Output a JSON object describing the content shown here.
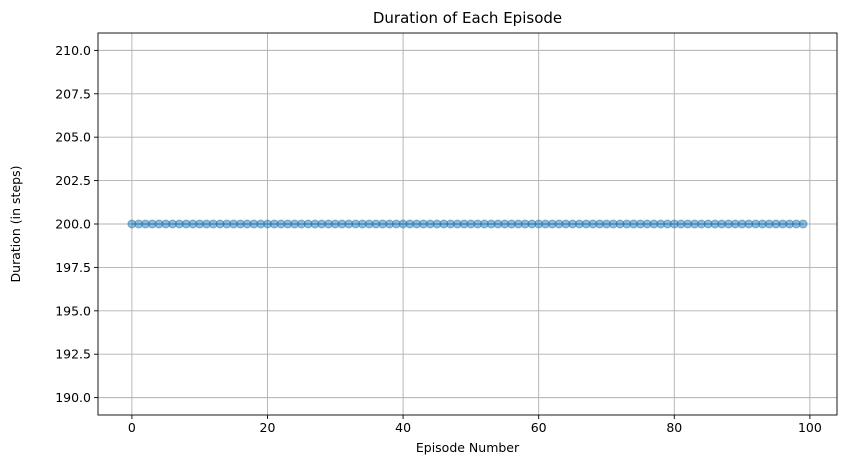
{
  "chart_data": {
    "type": "scatter",
    "title": "Duration of Each Episode",
    "xlabel": "Episode Number",
    "ylabel": "Duration (in steps)",
    "xlim": [
      -5,
      104
    ],
    "ylim": [
      189,
      211
    ],
    "xticks": [
      0,
      20,
      40,
      60,
      80,
      100
    ],
    "yticks": [
      190.0,
      192.5,
      195.0,
      197.5,
      200.0,
      202.5,
      205.0,
      207.5,
      210.0
    ],
    "xtick_labels": [
      "0",
      "20",
      "40",
      "60",
      "80",
      "100"
    ],
    "ytick_labels": [
      "190.0",
      "192.5",
      "195.0",
      "197.5",
      "200.0",
      "202.5",
      "205.0",
      "207.5",
      "210.0"
    ],
    "grid": true,
    "line_connected": true,
    "series": [
      {
        "color": "#1f77b4",
        "marker": "circle",
        "alpha": 0.5,
        "x_start": 0,
        "x_end": 99,
        "x_step": 1,
        "y_constant": 200
      }
    ]
  }
}
